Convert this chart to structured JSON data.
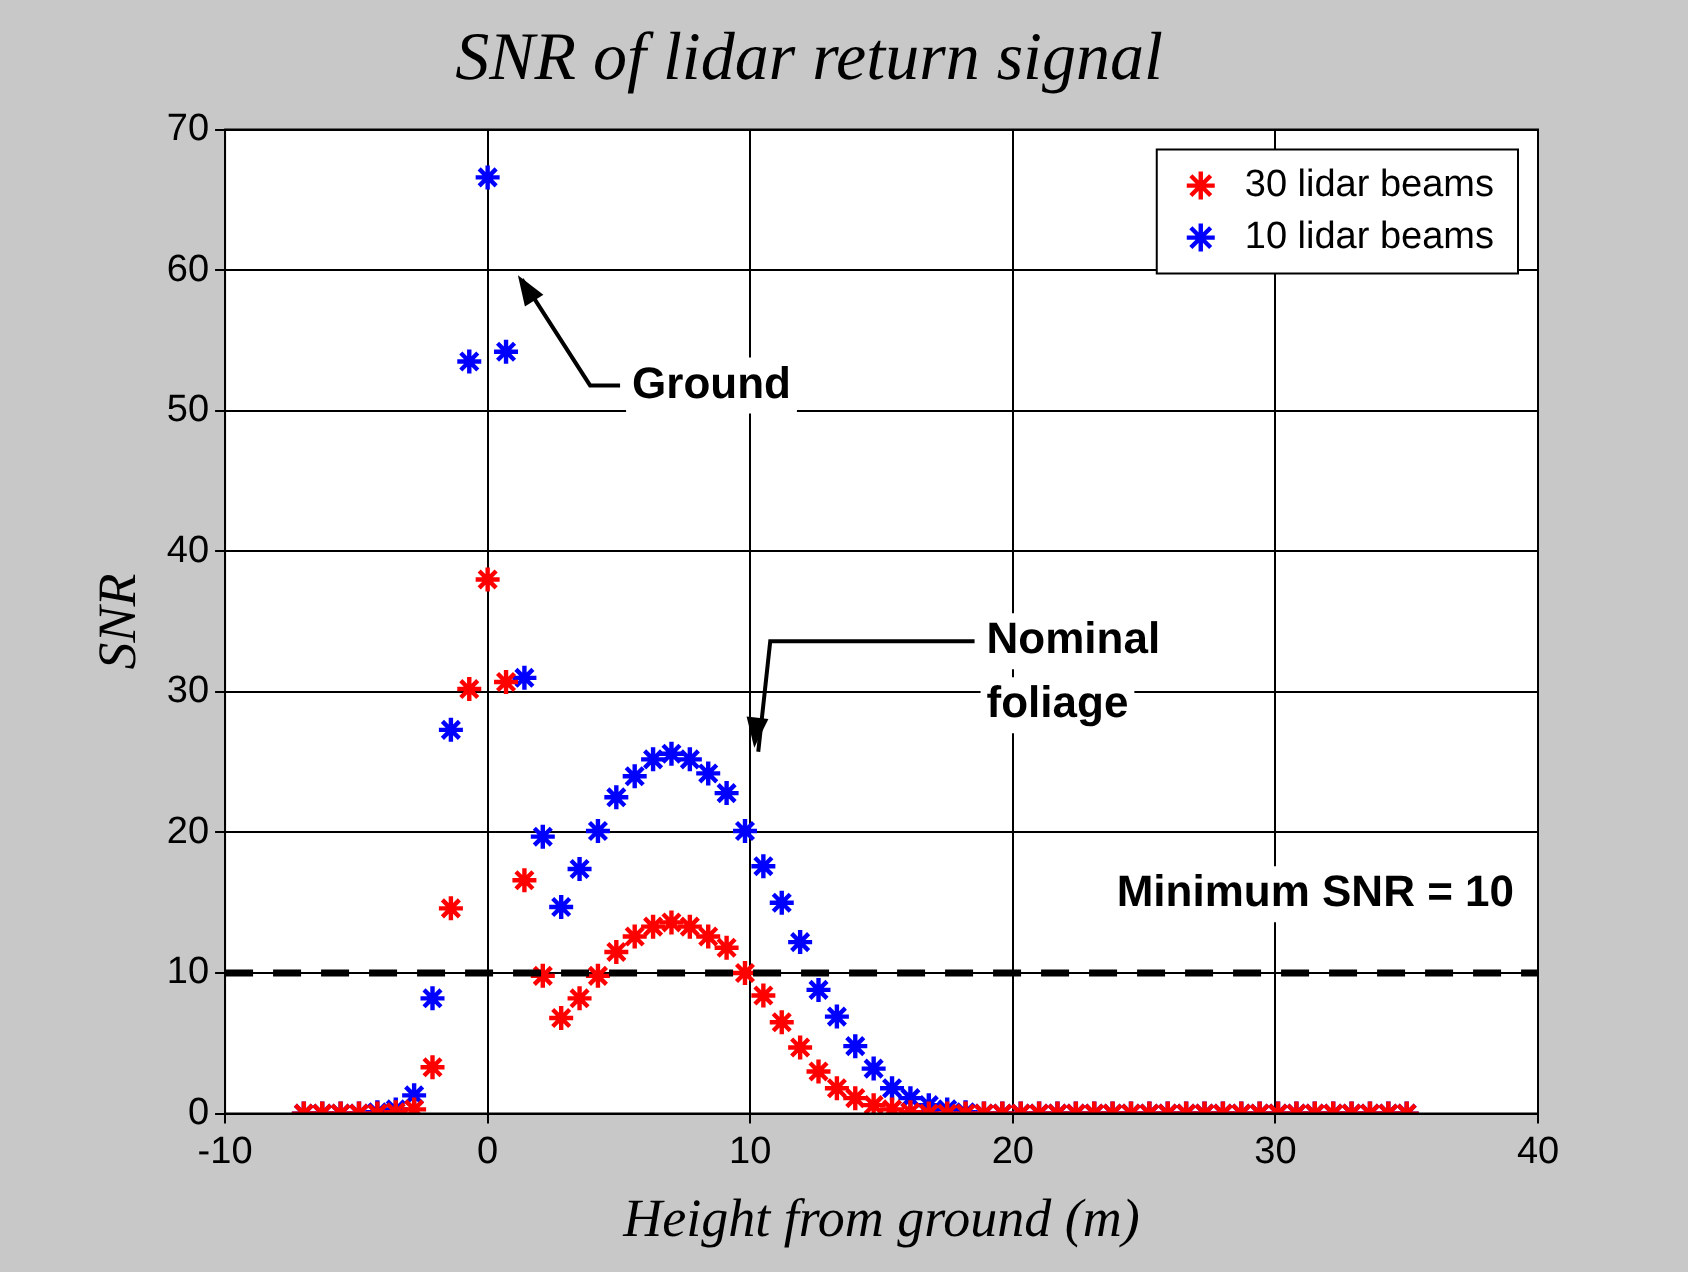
{
  "chart_data": {
    "type": "scatter",
    "title": "SNR of lidar return signal",
    "xlabel": "Height from ground (m)",
    "ylabel": "SNR",
    "x": [
      -7,
      -6.3,
      -5.6,
      -4.9,
      -4.2,
      -3.5,
      -2.8,
      -2.1,
      -1.4,
      -0.7,
      0,
      0.7,
      1.4,
      2.1,
      2.8,
      3.5,
      4.2,
      4.9,
      5.6,
      6.3,
      7,
      7.7,
      8.4,
      9.1,
      9.8,
      10.5,
      11.2,
      11.9,
      12.6,
      13.3,
      14,
      14.7,
      15.4,
      16.1,
      16.8,
      17.5,
      18.2,
      18.9,
      19.6,
      20.3,
      21,
      21.7,
      22.4,
      23.1,
      23.8,
      24.5,
      25.2,
      25.9,
      26.6,
      27.3,
      28,
      28.7,
      29.4,
      30.1,
      30.8,
      31.5,
      32.2,
      32.9,
      33.6,
      34.3,
      35
    ],
    "series": [
      {
        "name": "30 lidar beams",
        "color": "#ff0000",
        "values": [
          0,
          0,
          0,
          0,
          0,
          0.1,
          0.3,
          3.3,
          14.6,
          30.2,
          38,
          30.7,
          16.6,
          9.8,
          6.8,
          8.2,
          9.8,
          11.5,
          12.6,
          13.3,
          13.6,
          13.3,
          12.6,
          11.8,
          10,
          8.4,
          6.5,
          4.7,
          3,
          1.8,
          1.1,
          0.6,
          0.3,
          0.1,
          0,
          0,
          0,
          0,
          0,
          0,
          0,
          0,
          0,
          0,
          0,
          0,
          0,
          0,
          0,
          0,
          0,
          0,
          0,
          0,
          0,
          0,
          0,
          0,
          0,
          0,
          0
        ]
      },
      {
        "name": "10 lidar beams",
        "color": "#0000ff",
        "values": [
          0,
          0,
          0,
          0,
          0.1,
          0.3,
          1.3,
          8.2,
          27.3,
          53.5,
          66.6,
          54.2,
          31,
          19.7,
          14.7,
          17.4,
          20.1,
          22.5,
          24,
          25.2,
          25.6,
          25.2,
          24.2,
          22.8,
          20.1,
          17.6,
          15,
          12.2,
          8.8,
          6.9,
          4.8,
          3.2,
          1.8,
          1.1,
          0.6,
          0.3,
          0.1,
          0,
          0,
          0,
          0,
          0,
          0,
          0,
          0,
          0,
          0,
          0,
          0,
          0,
          0,
          0,
          0,
          0,
          0,
          0,
          0,
          0,
          0,
          0,
          0
        ]
      }
    ],
    "xlim": [
      -10,
      40
    ],
    "xticks": [
      -10,
      0,
      10,
      20,
      30,
      40
    ],
    "ylim": [
      0,
      70
    ],
    "yticks": [
      0,
      10,
      20,
      30,
      40,
      50,
      60,
      70
    ],
    "grid": true,
    "legend": "top right",
    "marker": "cross",
    "ref_lines": [
      {
        "axis": "y",
        "value": 10,
        "label": "Minimum SNR = 10",
        "color": "#000000",
        "line_style": "dashed"
      }
    ],
    "annotations": [
      "Ground",
      "Nominal foliage"
    ]
  }
}
